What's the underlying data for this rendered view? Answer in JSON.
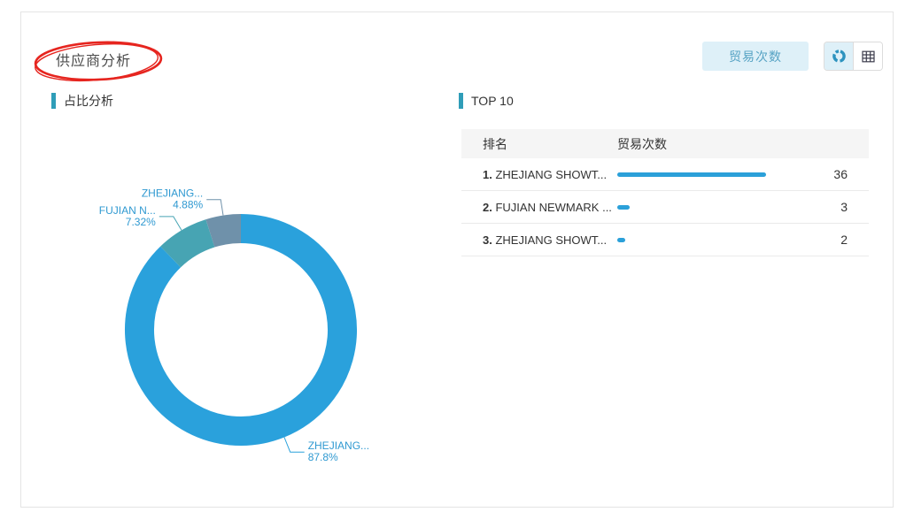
{
  "card": {
    "title": "供应商分析"
  },
  "toolbar": {
    "metric_button_label": "贸易次数",
    "view_toggle": {
      "chart_view_icon": "donut-chart-icon",
      "table_view_icon": "table-grid-icon",
      "selected": "chart"
    }
  },
  "sections": {
    "proportion_label": "占比分析",
    "top_label": "TOP 10"
  },
  "chart_data": {
    "type": "pie",
    "subtype": "donut",
    "title": "占比分析",
    "legend_position": "none",
    "label_text_color": "#2f99d1",
    "slices": [
      {
        "name": "ZHEJIANG...",
        "percent": 87.8,
        "percent_label": "87.8%",
        "color": "#2aa1dc"
      },
      {
        "name": "FUJIAN N...",
        "percent": 7.32,
        "percent_label": "7.32%",
        "color": "#47a4b3"
      },
      {
        "name": "ZHEJIANG...",
        "percent": 4.88,
        "percent_label": "4.88%",
        "color": "#6f91aa"
      }
    ]
  },
  "table": {
    "headers": {
      "rank": "排名",
      "metric": "贸易次数"
    },
    "bar_color": "#2ba0d9",
    "rows": [
      {
        "rank": "1.",
        "name": "ZHEJIANG SHOWT...",
        "value": 36
      },
      {
        "rank": "2.",
        "name": "FUJIAN NEWMARK ...",
        "value": 3
      },
      {
        "rank": "3.",
        "name": "ZHEJIANG SHOWT...",
        "value": 2
      }
    ]
  },
  "annotation": {
    "shape": "red-ellipse",
    "color": "#e6251f"
  }
}
